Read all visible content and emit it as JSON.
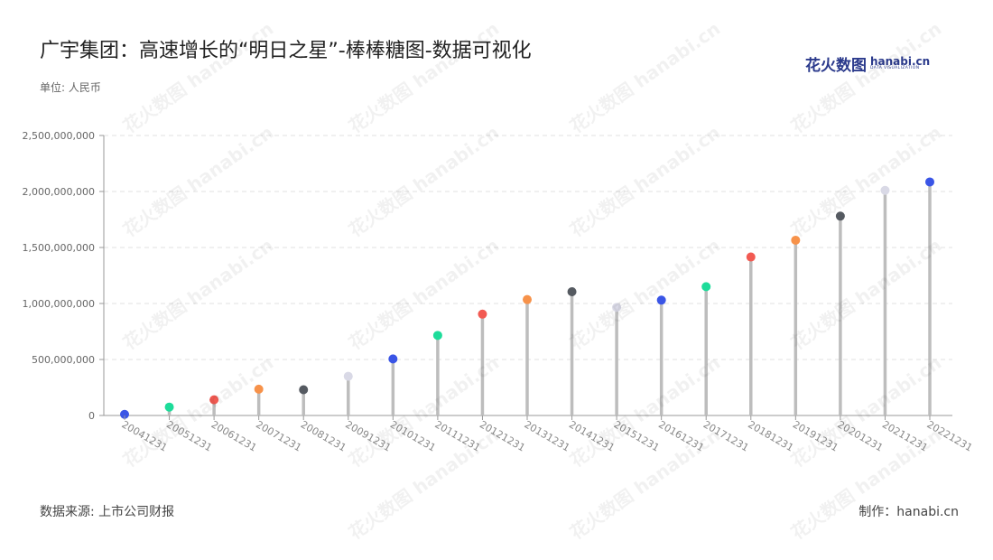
{
  "title": "广宇集团：高速增长的“明日之星”-棒棒糖图-数据可视化",
  "unit_label": "单位: 人民币",
  "source_label": "数据来源: 上市公司财报",
  "maker_label": "制作：hanabi.cn",
  "logo": {
    "cn": "花火数图",
    "en": "hanabi.cn",
    "sub": "DATA VISUALIZATION"
  },
  "watermark_text": "花火数图 hanabi.cn",
  "colors": {
    "axis": "#999999",
    "grid": "#e0e0e0",
    "stem": "#bdbdbd",
    "tick_label": "#666666",
    "palette": [
      "#3a55e6",
      "#1ddc9a",
      "#f25a52",
      "#f7924a",
      "#555a61",
      "#d9d9e6"
    ]
  },
  "chart_data": {
    "type": "lollipop",
    "title": "广宇集团：高速增长的“明日之星”-棒棒糖图-数据可视化",
    "xlabel": "",
    "ylabel": "单位: 人民币",
    "ylim": [
      0,
      2500000000
    ],
    "yticks": [
      0,
      500000000,
      1000000000,
      1500000000,
      2000000000,
      2500000000
    ],
    "ytick_labels": [
      "0",
      "500,000,000",
      "1,000,000,000",
      "1,500,000,000",
      "2,000,000,000",
      "2,500,000,000"
    ],
    "grid": true,
    "categories": [
      "20041231",
      "20051231",
      "20061231",
      "20071231",
      "20081231",
      "20091231",
      "20101231",
      "20111231",
      "20121231",
      "20131231",
      "20141231",
      "20151231",
      "20161231",
      "20171231",
      "20181231",
      "20191231",
      "20201231",
      "20211231",
      "20221231"
    ],
    "values": [
      10000000,
      75000000,
      140000000,
      235000000,
      230000000,
      350000000,
      505000000,
      715000000,
      905000000,
      1035000000,
      1105000000,
      965000000,
      1030000000,
      1150000000,
      1415000000,
      1565000000,
      1780000000,
      2010000000,
      2085000000
    ]
  }
}
